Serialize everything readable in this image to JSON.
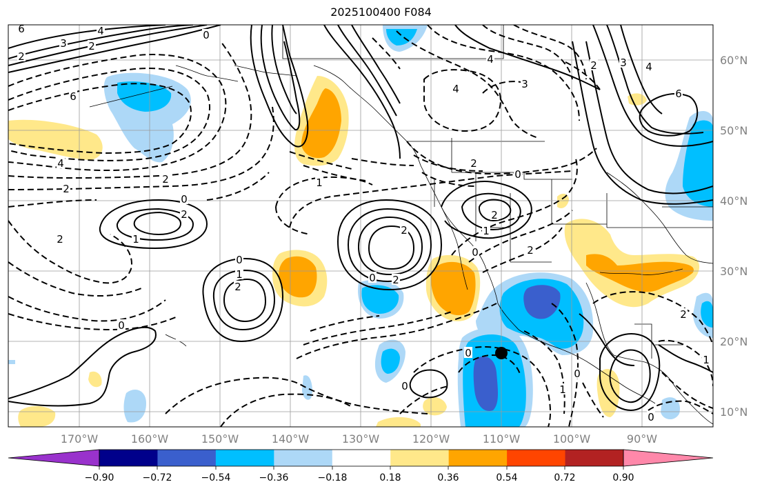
{
  "title": "2025100400 F084",
  "lat_labels": [
    "60°N",
    "50°N",
    "40°N",
    "30°N",
    "20°N",
    "10°N"
  ],
  "lon_labels": [
    "170°W",
    "160°W",
    "150°W",
    "140°W",
    "130°W",
    "120°W",
    "110°W",
    "100°W",
    "90°W"
  ],
  "colorbar": {
    "labels": [
      "−0.90",
      "−0.72",
      "−0.54",
      "−0.36",
      "−0.18",
      "0.18",
      "0.36",
      "0.54",
      "0.72",
      "0.90"
    ],
    "colors": [
      "#9932cc",
      "#00008b",
      "#3a5fcd",
      "#00bfff",
      "#add8f7",
      "#ffffff",
      "#ffe88a",
      "#ffa500",
      "#ff4500",
      "#b22222",
      "#ff88aa"
    ]
  },
  "shading_colors": {
    "light_blue": "#add8f7",
    "blue": "#00bfff",
    "dark_blue": "#3a5fcd",
    "light_yellow": "#ffe88a",
    "orange": "#ffa500"
  },
  "contour_labels": [
    {
      "t": "6"
    },
    {
      "t": "4"
    },
    {
      "t": "3"
    },
    {
      "t": "2"
    },
    {
      "t": "0"
    },
    {
      "t": "2"
    },
    {
      "t": "6"
    },
    {
      "t": "4"
    },
    {
      "t": "2"
    },
    {
      "t": "2"
    },
    {
      "t": "0"
    },
    {
      "t": "2"
    },
    {
      "t": "1"
    },
    {
      "t": "0"
    },
    {
      "t": "2"
    },
    {
      "t": "1"
    },
    {
      "t": "2"
    },
    {
      "t": "0"
    },
    {
      "t": "1"
    },
    {
      "t": "2"
    },
    {
      "t": "0"
    },
    {
      "t": "2"
    },
    {
      "t": "2"
    },
    {
      "t": "0"
    },
    {
      "t": "1"
    },
    {
      "t": "2"
    },
    {
      "t": "0"
    },
    {
      "t": "2"
    },
    {
      "t": "4"
    },
    {
      "t": "3"
    },
    {
      "t": "4"
    },
    {
      "t": "2"
    },
    {
      "t": "3"
    },
    {
      "t": "4"
    },
    {
      "t": "6"
    },
    {
      "t": "0"
    },
    {
      "t": "0"
    },
    {
      "t": "0"
    },
    {
      "t": "1"
    },
    {
      "t": "0"
    },
    {
      "t": "1"
    },
    {
      "t": "2"
    }
  ],
  "marker": "storm-center"
}
